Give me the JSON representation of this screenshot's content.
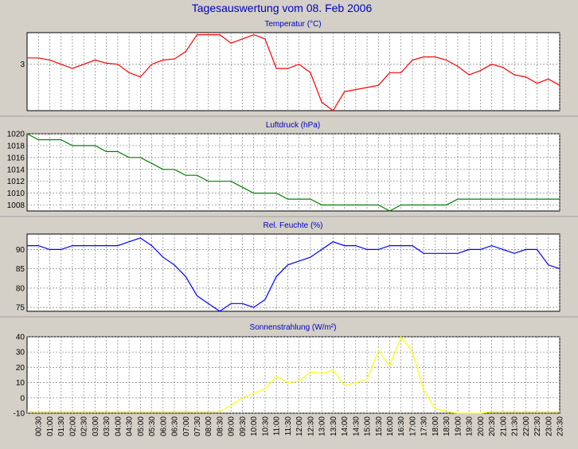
{
  "page_title": "Tagesauswertung vom 08. Feb 2006",
  "colors": {
    "background": "#d4d0c8",
    "plot_background": "#ffffff",
    "title": "#0000c0",
    "grid": "#808080",
    "temperature": "#ff0000",
    "pressure": "#008000",
    "humidity": "#0000ff",
    "solar": "#ffff00"
  },
  "x_tick_labels": [
    "00:30",
    "01:00",
    "01:30",
    "02:00",
    "02:30",
    "03:00",
    "03:30",
    "04:00",
    "04:30",
    "05:00",
    "05:30",
    "06:00",
    "06:30",
    "07:00",
    "07:30",
    "08:00",
    "08:30",
    "09:00",
    "09:30",
    "10:00",
    "10:30",
    "11:00",
    "11:30",
    "12:00",
    "12:30",
    "13:00",
    "13:30",
    "14:00",
    "14:30",
    "15:00",
    "15:30",
    "16:00",
    "16:30",
    "17:00",
    "17:30",
    "18:00",
    "18:30",
    "19:00",
    "19:30",
    "20:00",
    "20:30",
    "21:00",
    "21:30",
    "22:00",
    "22:30",
    "23:00",
    "23:30"
  ],
  "chart_data": [
    {
      "type": "line",
      "title": "Temperatur (°C)",
      "x": [
        "00:00",
        "00:30",
        "01:00",
        "01:30",
        "02:00",
        "02:30",
        "03:00",
        "03:30",
        "04:00",
        "04:30",
        "05:00",
        "05:30",
        "06:00",
        "06:30",
        "07:00",
        "07:30",
        "08:00",
        "08:30",
        "09:00",
        "09:30",
        "10:00",
        "10:30",
        "11:00",
        "11:30",
        "12:00",
        "12:30",
        "13:00",
        "13:30",
        "14:00",
        "14:30",
        "15:00",
        "15:30",
        "16:00",
        "16:30",
        "17:00",
        "17:30",
        "18:00",
        "18:30",
        "19:00",
        "19:30",
        "20:00",
        "20:30",
        "21:00",
        "21:30",
        "22:00",
        "22:30",
        "23:00",
        "23:30"
      ],
      "values": [
        3.3,
        3.3,
        3.2,
        3.0,
        2.8,
        3.0,
        3.2,
        3.05,
        3.0,
        2.6,
        2.4,
        3.0,
        3.2,
        3.25,
        3.6,
        4.4,
        4.4,
        4.4,
        4.0,
        4.2,
        4.4,
        4.2,
        2.8,
        2.8,
        3.0,
        2.6,
        1.2,
        0.8,
        1.7,
        1.8,
        1.9,
        2.0,
        2.6,
        2.6,
        3.2,
        3.35,
        3.35,
        3.2,
        2.9,
        2.5,
        2.7,
        3.0,
        2.85,
        2.5,
        2.4,
        2.1,
        2.3,
        2.0
      ],
      "ylim": [
        0.8,
        4.5
      ],
      "yticks": [
        3
      ],
      "series_color": "#ff0000"
    },
    {
      "type": "line",
      "title": "Luftdruck (hPa)",
      "x": [
        "00:00",
        "00:30",
        "01:00",
        "01:30",
        "02:00",
        "02:30",
        "03:00",
        "03:30",
        "04:00",
        "04:30",
        "05:00",
        "05:30",
        "06:00",
        "06:30",
        "07:00",
        "07:30",
        "08:00",
        "08:30",
        "09:00",
        "09:30",
        "10:00",
        "10:30",
        "11:00",
        "11:30",
        "12:00",
        "12:30",
        "13:00",
        "13:30",
        "14:00",
        "14:30",
        "15:00",
        "15:30",
        "16:00",
        "16:30",
        "17:00",
        "17:30",
        "18:00",
        "18:30",
        "19:00",
        "19:30",
        "20:00",
        "20:30",
        "21:00",
        "21:30",
        "22:00",
        "22:30",
        "23:00",
        "23:30"
      ],
      "values": [
        1020,
        1019,
        1019,
        1019,
        1018,
        1018,
        1018,
        1017,
        1017,
        1016,
        1016,
        1015,
        1014,
        1014,
        1013,
        1013,
        1012,
        1012,
        1012,
        1011,
        1010,
        1010,
        1010,
        1009,
        1009,
        1009,
        1008,
        1008,
        1008,
        1008,
        1008,
        1008,
        1007,
        1008,
        1008,
        1008,
        1008,
        1008,
        1009,
        1009,
        1009,
        1009,
        1009,
        1009,
        1009,
        1009,
        1009,
        1009
      ],
      "ylim": [
        1007,
        1020
      ],
      "yticks": [
        1008,
        1010,
        1012,
        1014,
        1016,
        1018,
        1020
      ],
      "series_color": "#008000"
    },
    {
      "type": "line",
      "title": "Rel. Feuchte (%)",
      "x": [
        "00:00",
        "00:30",
        "01:00",
        "01:30",
        "02:00",
        "02:30",
        "03:00",
        "03:30",
        "04:00",
        "04:30",
        "05:00",
        "05:30",
        "06:00",
        "06:30",
        "07:00",
        "07:30",
        "08:00",
        "08:30",
        "09:00",
        "09:30",
        "10:00",
        "10:30",
        "11:00",
        "11:30",
        "12:00",
        "12:30",
        "13:00",
        "13:30",
        "14:00",
        "14:30",
        "15:00",
        "15:30",
        "16:00",
        "16:30",
        "17:00",
        "17:30",
        "18:00",
        "18:30",
        "19:00",
        "19:30",
        "20:00",
        "20:30",
        "21:00",
        "21:30",
        "22:00",
        "22:30",
        "23:00",
        "23:30"
      ],
      "values": [
        91,
        91,
        90,
        90,
        91,
        91,
        91,
        91,
        91,
        92,
        93,
        91,
        88,
        86,
        83,
        78,
        76,
        74,
        76,
        76,
        75,
        77,
        83,
        86,
        87,
        88,
        90,
        92,
        91,
        91,
        90,
        90,
        91,
        91,
        91,
        89,
        89,
        89,
        89,
        90,
        90,
        91,
        90,
        89,
        90,
        90,
        86,
        85
      ],
      "ylim": [
        74,
        94
      ],
      "yticks": [
        75,
        80,
        85,
        90
      ],
      "series_color": "#0000ff"
    },
    {
      "type": "line",
      "title": "Sonnenstrahlung (W/m²)",
      "x": [
        "00:00",
        "00:30",
        "01:00",
        "01:30",
        "02:00",
        "02:30",
        "03:00",
        "03:30",
        "04:00",
        "04:30",
        "05:00",
        "05:30",
        "06:00",
        "06:30",
        "07:00",
        "07:30",
        "08:00",
        "08:30",
        "09:00",
        "09:30",
        "10:00",
        "10:30",
        "11:00",
        "11:30",
        "12:00",
        "12:30",
        "13:00",
        "13:30",
        "14:00",
        "14:30",
        "15:00",
        "15:30",
        "16:00",
        "16:30",
        "17:00",
        "17:30",
        "18:00",
        "18:30",
        "19:00",
        "19:30",
        "20:00",
        "20:30",
        "21:00",
        "21:30",
        "22:00",
        "22:30",
        "23:00",
        "23:30"
      ],
      "values": [
        -9,
        -9,
        -9,
        -9,
        -9,
        -9,
        -9,
        -9,
        -9,
        -9,
        -9,
        -9,
        -9,
        -9,
        -9,
        -9,
        -9,
        -9,
        -5,
        0,
        3,
        6,
        14,
        10,
        11,
        17,
        16,
        18,
        8,
        10,
        12,
        31,
        21,
        40,
        30,
        5,
        -7,
        -9,
        -10,
        -10,
        -10,
        -9,
        -9,
        -9,
        -9,
        -9,
        -9,
        -9
      ],
      "ylim": [
        -10,
        40
      ],
      "yticks": [
        -10,
        0,
        10,
        20,
        30,
        40
      ],
      "series_color": "#ffff00"
    }
  ]
}
